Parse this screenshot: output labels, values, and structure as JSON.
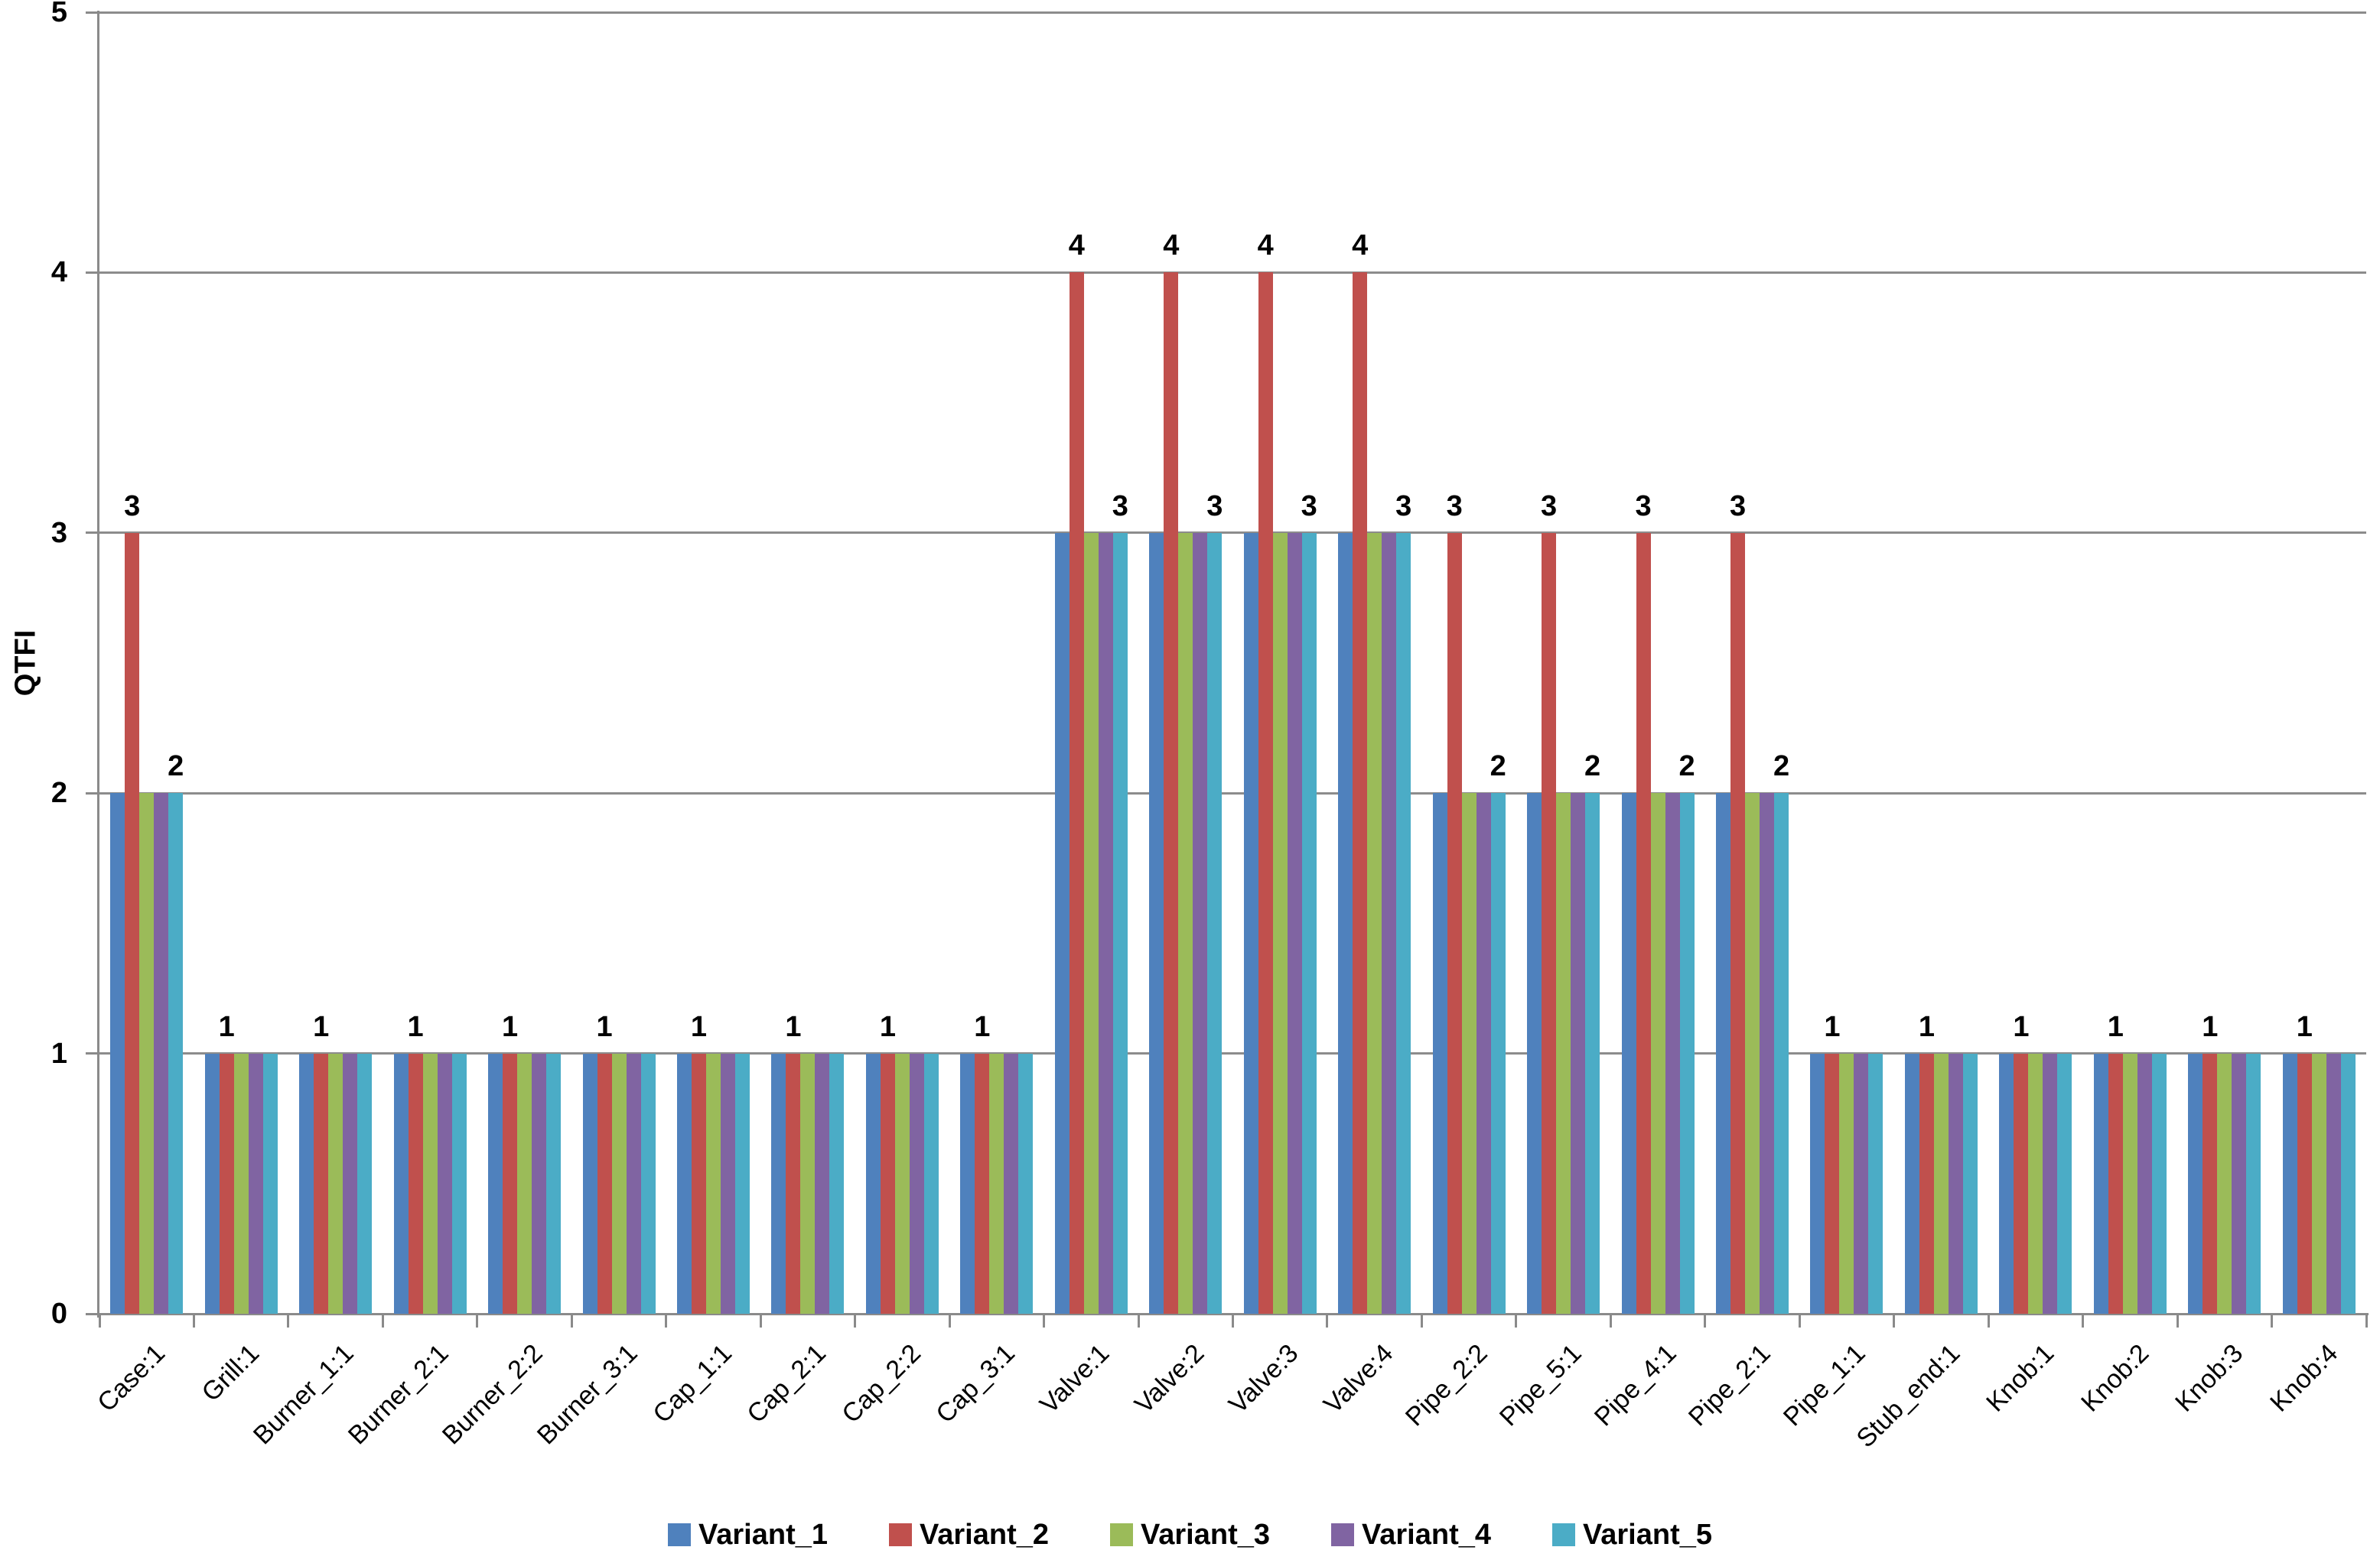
{
  "chart_data": {
    "type": "bar",
    "title": "",
    "xlabel": "",
    "ylabel": "QTFI",
    "ylim": [
      0,
      5
    ],
    "yticks": [
      0,
      1,
      2,
      3,
      4,
      5
    ],
    "grid": true,
    "legend_position": "bottom",
    "axis_color": "#8a8a8a",
    "gridline_color": "#8c8c8c",
    "label_color": "#000000",
    "background_color": "#ffffff",
    "categories": [
      "Case:1",
      "Grill:1",
      "Burner_1:1",
      "Burner_2:1",
      "Burner_2:2",
      "Burner_3:1",
      "Cap_1:1",
      "Cap_2:1",
      "Cap_2:2",
      "Cap_3:1",
      "Valve:1",
      "Valve:2",
      "Valve:3",
      "Valve:4",
      "Pipe_2:2",
      "Pipe_5:1",
      "Pipe_4:1",
      "Pipe_2:1",
      "Pipe_1:1",
      "Stub_end:1",
      "Knob:1",
      "Knob:2",
      "Knob:3",
      "Knob:4"
    ],
    "series": [
      {
        "name": "Variant_1",
        "color": "#4F81BD",
        "values": [
          2,
          1,
          1,
          1,
          1,
          1,
          1,
          1,
          1,
          1,
          3,
          3,
          3,
          3,
          2,
          2,
          2,
          2,
          1,
          1,
          1,
          1,
          1,
          1
        ]
      },
      {
        "name": "Variant_2",
        "color": "#C0504D",
        "values": [
          3,
          1,
          1,
          1,
          1,
          1,
          1,
          1,
          1,
          1,
          4,
          4,
          4,
          4,
          3,
          3,
          3,
          3,
          1,
          1,
          1,
          1,
          1,
          1
        ]
      },
      {
        "name": "Variant_3",
        "color": "#9BBB59",
        "values": [
          2,
          1,
          1,
          1,
          1,
          1,
          1,
          1,
          1,
          1,
          3,
          3,
          3,
          3,
          2,
          2,
          2,
          2,
          1,
          1,
          1,
          1,
          1,
          1
        ]
      },
      {
        "name": "Variant_4",
        "color": "#8064A2",
        "values": [
          2,
          1,
          1,
          1,
          1,
          1,
          1,
          1,
          1,
          1,
          3,
          3,
          3,
          3,
          2,
          2,
          2,
          2,
          1,
          1,
          1,
          1,
          1,
          1
        ]
      },
      {
        "name": "Variant_5",
        "color": "#4BACC6",
        "values": [
          2,
          1,
          1,
          1,
          1,
          1,
          1,
          1,
          1,
          1,
          3,
          3,
          3,
          3,
          2,
          2,
          2,
          2,
          1,
          1,
          1,
          1,
          1,
          1
        ]
      }
    ],
    "data_labels": [
      [
        {
          "series": "Variant_2",
          "value": 3
        },
        {
          "series": "Variant_5",
          "value": 2
        }
      ],
      [
        {
          "series": "Variant_2",
          "value": 1
        }
      ],
      [
        {
          "series": "Variant_2",
          "value": 1
        }
      ],
      [
        {
          "series": "Variant_2",
          "value": 1
        }
      ],
      [
        {
          "series": "Variant_2",
          "value": 1
        }
      ],
      [
        {
          "series": "Variant_2",
          "value": 1
        }
      ],
      [
        {
          "series": "Variant_2",
          "value": 1
        }
      ],
      [
        {
          "series": "Variant_2",
          "value": 1
        }
      ],
      [
        {
          "series": "Variant_2",
          "value": 1
        }
      ],
      [
        {
          "series": "Variant_2",
          "value": 1
        }
      ],
      [
        {
          "series": "Variant_2",
          "value": 4
        },
        {
          "series": "Variant_5",
          "value": 3
        }
      ],
      [
        {
          "series": "Variant_2",
          "value": 4
        },
        {
          "series": "Variant_5",
          "value": 3
        }
      ],
      [
        {
          "series": "Variant_2",
          "value": 4
        },
        {
          "series": "Variant_5",
          "value": 3
        }
      ],
      [
        {
          "series": "Variant_2",
          "value": 4
        },
        {
          "series": "Variant_5",
          "value": 3
        }
      ],
      [
        {
          "series": "Variant_2",
          "value": 3
        },
        {
          "series": "Variant_5",
          "value": 2
        }
      ],
      [
        {
          "series": "Variant_2",
          "value": 3
        },
        {
          "series": "Variant_5",
          "value": 2
        }
      ],
      [
        {
          "series": "Variant_2",
          "value": 3
        },
        {
          "series": "Variant_5",
          "value": 2
        }
      ],
      [
        {
          "series": "Variant_2",
          "value": 3
        },
        {
          "series": "Variant_5",
          "value": 2
        }
      ],
      [
        {
          "series": "Variant_2",
          "value": 1
        }
      ],
      [
        {
          "series": "Variant_2",
          "value": 1
        }
      ],
      [
        {
          "series": "Variant_2",
          "value": 1
        }
      ],
      [
        {
          "series": "Variant_2",
          "value": 1
        }
      ],
      [
        {
          "series": "Variant_2",
          "value": 1
        }
      ],
      [
        {
          "series": "Variant_2",
          "value": 1
        }
      ]
    ]
  }
}
